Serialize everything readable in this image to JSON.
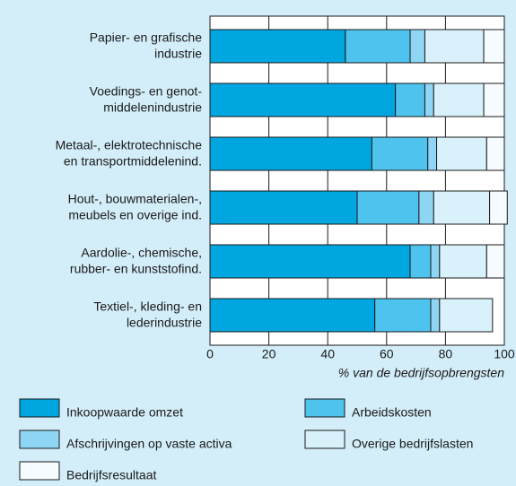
{
  "chart_data": {
    "type": "stacked-barh",
    "categories": [
      [
        "Papier- en grafische",
        "industrie"
      ],
      [
        "Voedings- en genot-",
        "middelenindustrie"
      ],
      [
        "Metaal-, elektrotechnische",
        "en transportmiddelenind."
      ],
      [
        "Hout-, bouwmaterialen-,",
        "meubels en overige ind."
      ],
      [
        "Aardolie-, chemische,",
        "rubber- en kunststofind."
      ],
      [
        "Textiel-, kleding- en",
        "lederindustrie"
      ]
    ],
    "series": [
      {
        "name": "Inkoopwaarde omzet",
        "color": "#00a6df",
        "values": [
          46,
          63,
          55,
          50,
          68,
          56
        ]
      },
      {
        "name": "Arbeidskosten",
        "color": "#4ec3ee",
        "values": [
          22,
          10,
          19,
          21,
          7,
          19
        ]
      },
      {
        "name": "Afschrijvingen op vaste activa",
        "color": "#8fd6f4",
        "values": [
          5,
          3,
          3,
          5,
          3,
          3
        ]
      },
      {
        "name": "Overige bedrijfslasten",
        "color": "#d9f1fb",
        "values": [
          20,
          17,
          17,
          19,
          16,
          18
        ]
      },
      {
        "name": "Bedrijfsresultaat",
        "color": "#f5fbfe",
        "values": [
          7,
          7,
          6,
          6,
          6,
          0
        ]
      }
    ],
    "xlabel": "% van de bedrijfsopbrengsten",
    "xlim": [
      0,
      100
    ],
    "xticks": [
      0,
      20,
      40,
      60,
      80,
      100
    ],
    "grid": true,
    "legend": "bottom"
  }
}
